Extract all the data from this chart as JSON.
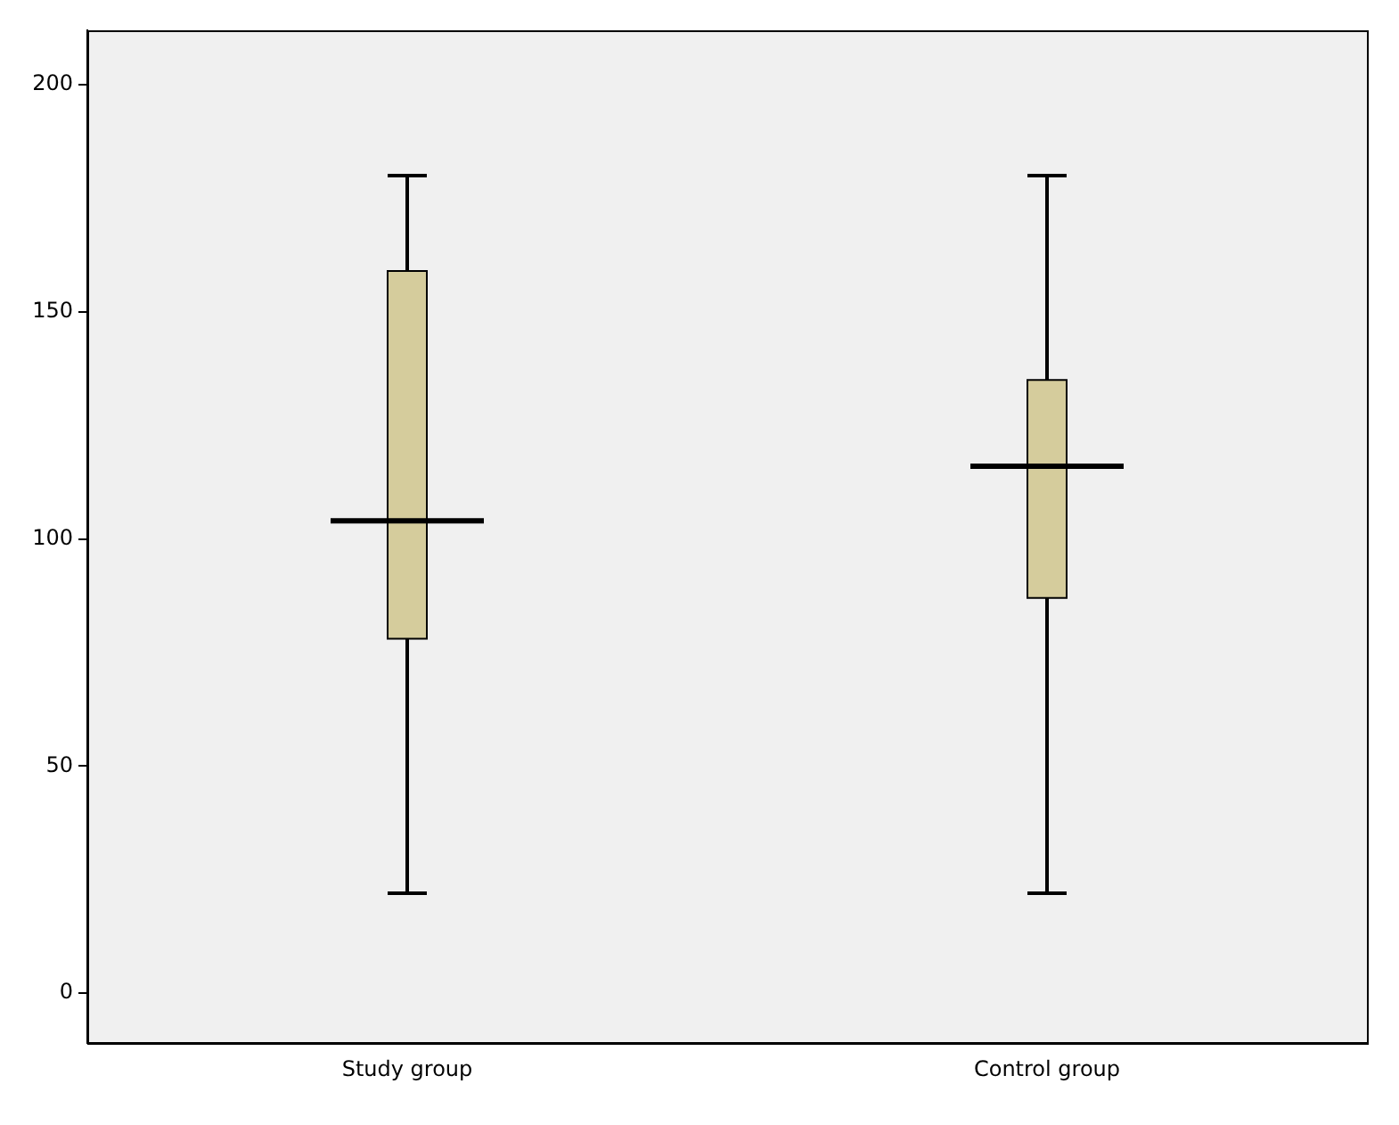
{
  "chart_data": {
    "type": "box",
    "categories": [
      "Study group",
      "Control group"
    ],
    "boxes": [
      {
        "low": 22,
        "q1": 78,
        "median": 104,
        "q3": 159,
        "high": 180
      },
      {
        "low": 22,
        "q1": 87,
        "median": 116,
        "q3": 135,
        "high": 180
      }
    ],
    "color": "#d5cc9c",
    "ylim": [
      -11,
      212
    ],
    "yticks": [
      0,
      50,
      100,
      150,
      200
    ],
    "grid": false,
    "legend": false
  }
}
